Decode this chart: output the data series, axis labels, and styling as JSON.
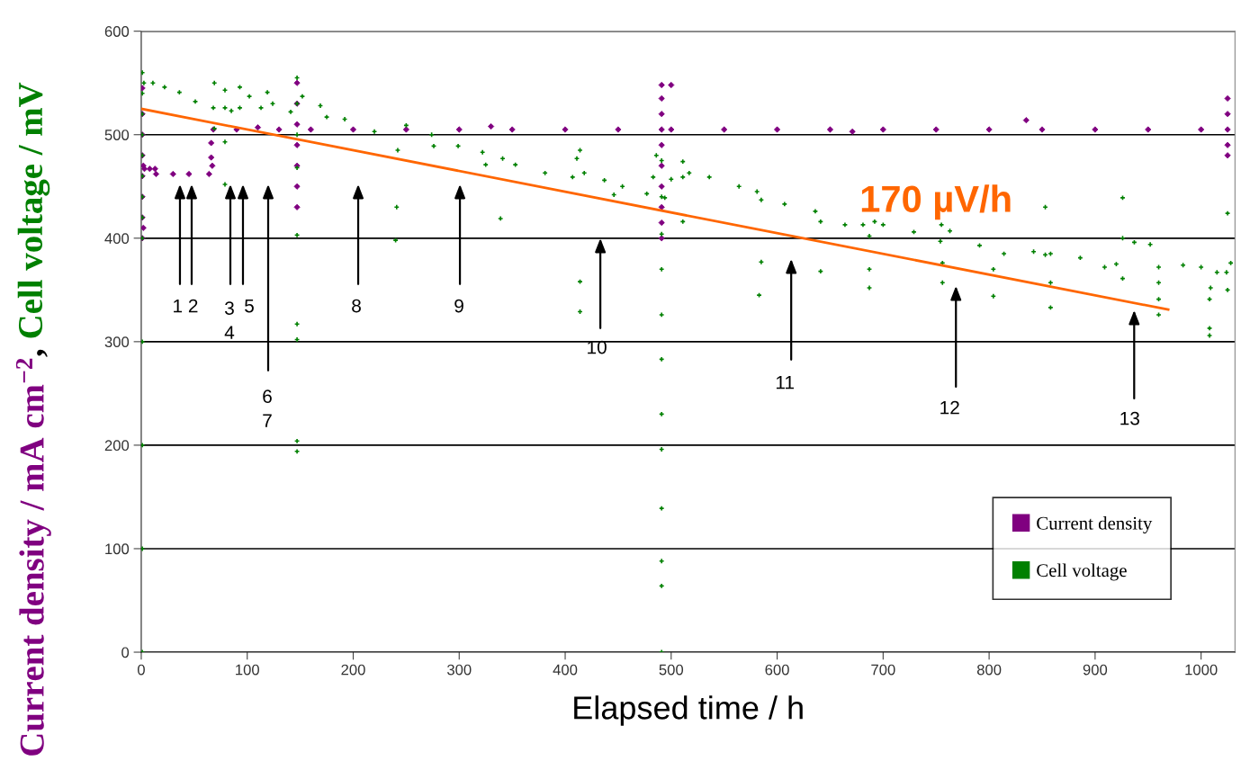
{
  "chart_data": {
    "type": "scatter",
    "xlabel": "Elapsed time / h",
    "ylabel": "Current density / mA cm$^{−2}$, Cell voltage / mV",
    "xlim": [
      0,
      1032
    ],
    "ylim": [
      0,
      600
    ],
    "xticks": [
      0,
      100,
      200,
      300,
      400,
      500,
      600,
      700,
      800,
      900,
      1000
    ],
    "yticks": [
      0,
      100,
      200,
      300,
      400,
      500,
      600
    ],
    "grid": "y",
    "legend": "bottom right",
    "series": [
      {
        "name": "Current density",
        "color": "#800080",
        "marker": "diamond",
        "x": [
          1,
          1,
          1,
          1,
          1,
          1,
          1,
          1,
          2,
          2,
          3,
          8,
          13,
          14,
          30,
          45,
          64,
          66,
          66,
          67,
          68,
          90,
          110,
          130,
          147,
          147,
          147,
          147,
          147,
          147,
          147,
          160,
          200,
          250,
          300,
          330,
          350,
          400,
          450,
          491,
          491,
          491,
          491,
          491,
          491,
          491,
          491,
          491,
          491,
          500,
          500,
          550,
          600,
          650,
          671,
          700,
          750,
          800,
          835,
          850,
          900,
          950,
          1000,
          1025,
          1025,
          1025,
          1025,
          1025
        ],
        "values": [
          545,
          520,
          500,
          480,
          460,
          440,
          420,
          400,
          470,
          410,
          467,
          467,
          467,
          462,
          462,
          462,
          462,
          492,
          478,
          470,
          505,
          505,
          507,
          505,
          550,
          530,
          510,
          490,
          470,
          450,
          430,
          505,
          505,
          505,
          505,
          508,
          505,
          505,
          505,
          548,
          535,
          520,
          505,
          490,
          470,
          450,
          430,
          415,
          400,
          548,
          505,
          505,
          505,
          505,
          503,
          505,
          505,
          505,
          514,
          505,
          505,
          505,
          505,
          535,
          520,
          505,
          490,
          480
        ]
      },
      {
        "name": "Cell voltage",
        "color": "#008000",
        "marker": "cross",
        "x": [
          1,
          1,
          1,
          1,
          1,
          1,
          1,
          1,
          1,
          1,
          1,
          1,
          1,
          2.5,
          11,
          22,
          36,
          51,
          68,
          69,
          69,
          79,
          79,
          79,
          79,
          85,
          93,
          93,
          102,
          113,
          119,
          124,
          141,
          147,
          147,
          147,
          147,
          147,
          147,
          147,
          147,
          147,
          152,
          169,
          175,
          192,
          220,
          240,
          241,
          242,
          250,
          274,
          276,
          299,
          322,
          325,
          339,
          341,
          353,
          381,
          407,
          411,
          414,
          414,
          414,
          418,
          437,
          446,
          454,
          477,
          483,
          486,
          491,
          491,
          491,
          491,
          491,
          491,
          491,
          491,
          491,
          491,
          491,
          491,
          494,
          500,
          511,
          511,
          511,
          517,
          536,
          564,
          581,
          583,
          585,
          585,
          607,
          636,
          641,
          641,
          664,
          681,
          687,
          687,
          687,
          692,
          700,
          729,
          754,
          755,
          756,
          756,
          763,
          791,
          804,
          804,
          814,
          842,
          853,
          853,
          858,
          858,
          858,
          886,
          909,
          920,
          926,
          926,
          926,
          937,
          952,
          960,
          960,
          960,
          960,
          983,
          1000,
          1008,
          1008,
          1008,
          1009,
          1015,
          1024,
          1025,
          1025,
          1028
        ],
        "values": [
          560,
          540,
          520,
          500,
          480,
          460,
          440,
          420,
          400,
          300,
          200,
          100,
          0,
          550,
          550,
          546,
          541,
          532,
          526,
          550,
          506,
          526,
          543,
          493,
          452,
          523,
          526,
          546,
          537,
          526,
          541,
          530,
          522,
          555,
          530,
          500,
          468,
          403,
          317,
          302,
          204,
          194,
          537,
          528,
          517,
          515,
          503,
          398,
          430,
          485,
          509,
          500,
          489,
          489,
          483,
          471,
          419,
          477,
          471,
          463,
          459,
          477,
          485,
          358,
          329,
          463,
          456,
          442,
          450,
          443,
          459,
          480,
          475,
          440,
          404,
          370,
          326,
          283,
          230,
          196,
          139,
          88,
          64,
          0,
          439,
          457,
          459,
          474,
          416,
          463,
          459,
          450,
          445,
          345,
          437,
          377,
          433,
          426,
          416,
          368,
          413,
          413,
          402,
          370,
          352,
          416,
          413,
          406,
          397,
          413,
          376,
          357,
          407,
          393,
          370,
          344,
          385,
          387,
          384,
          430,
          385,
          357,
          333,
          381,
          372,
          375,
          439,
          400,
          361,
          396,
          394,
          372,
          357,
          341,
          326,
          374,
          372,
          341,
          313,
          306,
          352,
          367,
          367,
          424,
          350,
          376
        ]
      },
      {
        "type": "line",
        "color": "#ff6600",
        "x": [
          0,
          969
        ],
        "values": [
          525,
          331
        ]
      }
    ],
    "annotations": [
      "1 2",
      "3\n4",
      "5",
      "6\n7",
      "8",
      "9",
      "10",
      "11",
      "12",
      "13",
      "170 µV/h"
    ]
  }
}
